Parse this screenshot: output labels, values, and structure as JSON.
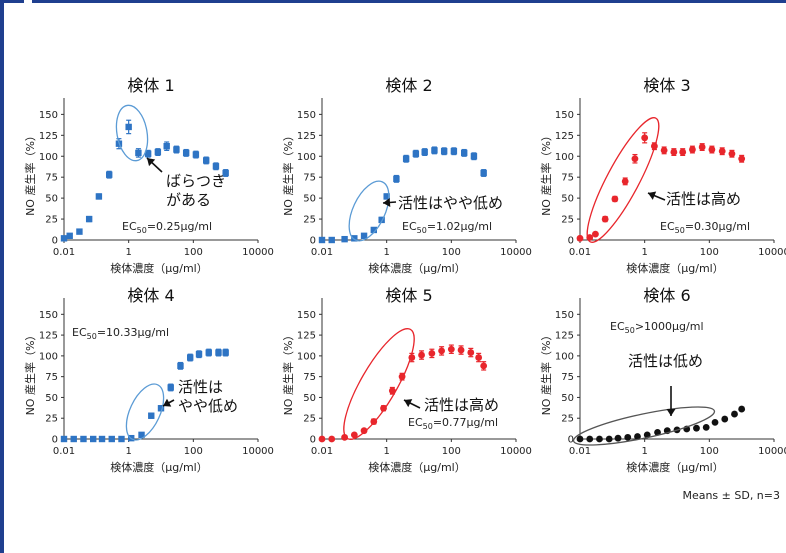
{
  "colors": {
    "blue": "#2e74c4",
    "red": "#e8262c",
    "black": "#111111",
    "ellipse_blue": "#5b9bd5",
    "ellipse_red": "#e8262c",
    "ellipse_black": "#555555",
    "axis": "#333333"
  },
  "axis_text": {
    "y_label": "NO 産生率（%）",
    "x_label": "検体濃度（μg/ml）"
  },
  "footnote": "Means ± SD, n=3",
  "chart_data": [
    {
      "type": "scatter",
      "title": "検体 1",
      "color": "blue",
      "xlabel": "検体濃度（μg/ml）",
      "ylabel": "NO 産生率（%）",
      "x_scale": "log",
      "xlim": [
        0.01,
        10000
      ],
      "x_ticks": [
        "0.01",
        "1",
        "100",
        "10000"
      ],
      "x_tick_values": [
        0.01,
        1,
        100,
        10000
      ],
      "ylim": [
        0,
        160
      ],
      "y_ticks": [
        0,
        25,
        50,
        75,
        100,
        125,
        150
      ],
      "ec50_text": "EC50=0.25μg/ml",
      "ec50_sub": "50",
      "ec50_pre": "EC",
      "ec50_post": "=0.25μg/ml",
      "annotation": {
        "text_lines": [
          "ばらつき",
          "がある"
        ]
      },
      "x": [
        0.01,
        0.015,
        0.03,
        0.06,
        0.12,
        0.25,
        0.5,
        1,
        2,
        4,
        8,
        15,
        30,
        60,
        120,
        250,
        500,
        1000
      ],
      "y": [
        2,
        5,
        10,
        25,
        52,
        78,
        115,
        135,
        104,
        103,
        105,
        112,
        108,
        104,
        102,
        95,
        88,
        80
      ],
      "err": [
        1,
        2,
        2,
        3,
        3,
        4,
        6,
        8,
        5,
        4,
        4,
        5,
        4,
        4,
        4,
        4,
        4,
        4
      ]
    },
    {
      "type": "scatter",
      "title": "検体 2",
      "color": "blue",
      "xlabel": "検体濃度（μg/ml）",
      "ylabel": "NO 産生率（%）",
      "x_scale": "log",
      "xlim": [
        0.01,
        10000
      ],
      "x_ticks": [
        "0.01",
        "1",
        "100",
        "10000"
      ],
      "x_tick_values": [
        0.01,
        1,
        100,
        10000
      ],
      "ylim": [
        0,
        160
      ],
      "y_ticks": [
        0,
        25,
        50,
        75,
        100,
        125,
        150
      ],
      "ec50_pre": "EC",
      "ec50_sub": "50",
      "ec50_post": "=1.02μg/ml",
      "annotation": {
        "text_lines": [
          "活性はやや低め"
        ]
      },
      "x": [
        0.01,
        0.02,
        0.05,
        0.1,
        0.2,
        0.4,
        0.7,
        1,
        2,
        4,
        8,
        15,
        30,
        60,
        120,
        250,
        500,
        1000
      ],
      "y": [
        0,
        0,
        1,
        2,
        5,
        12,
        24,
        52,
        73,
        97,
        103,
        105,
        107,
        106,
        106,
        104,
        100,
        80
      ],
      "err": [
        1,
        1,
        1,
        1,
        2,
        2,
        3,
        3,
        4,
        4,
        4,
        4,
        4,
        4,
        4,
        4,
        4,
        4
      ]
    },
    {
      "type": "scatter",
      "title": "検体 3",
      "color": "red",
      "xlabel": "検体濃度（μg/ml）",
      "ylabel": "NO 産生率（%）",
      "x_scale": "log",
      "xlim": [
        0.01,
        10000
      ],
      "x_ticks": [
        "0.01",
        "1",
        "100",
        "10000"
      ],
      "x_tick_values": [
        0.01,
        1,
        100,
        10000
      ],
      "ylim": [
        0,
        160
      ],
      "y_ticks": [
        0,
        25,
        50,
        75,
        100,
        125,
        150
      ],
      "ec50_pre": "EC",
      "ec50_sub": "50",
      "ec50_post": "=0.30μg/ml",
      "annotation": {
        "text_lines": [
          "活性は高め"
        ]
      },
      "x": [
        0.01,
        0.02,
        0.03,
        0.06,
        0.12,
        0.25,
        0.5,
        1,
        2,
        4,
        8,
        15,
        30,
        60,
        120,
        250,
        500,
        1000
      ],
      "y": [
        2,
        3,
        7,
        25,
        49,
        70,
        97,
        122,
        112,
        107,
        105,
        105,
        108,
        111,
        108,
        106,
        103,
        97
      ],
      "err": [
        1,
        1,
        2,
        3,
        3,
        4,
        5,
        6,
        4,
        4,
        4,
        4,
        4,
        4,
        4,
        4,
        4,
        4
      ]
    },
    {
      "type": "scatter",
      "title": "検体 4",
      "color": "blue",
      "xlabel": "検体濃度（μg/ml）",
      "ylabel": "NO 産生率（%）",
      "x_scale": "log",
      "xlim": [
        0.01,
        10000
      ],
      "x_ticks": [
        "0.01",
        "1",
        "100",
        "10000"
      ],
      "x_tick_values": [
        0.01,
        1,
        100,
        10000
      ],
      "ylim": [
        0,
        160
      ],
      "y_ticks": [
        0,
        25,
        50,
        75,
        100,
        125,
        150
      ],
      "ec50_pre": "EC",
      "ec50_sub": "50",
      "ec50_post": "=10.33μg/ml",
      "annotation": {
        "text_lines": [
          "活性は",
          "やや低め"
        ]
      },
      "x": [
        0.01,
        0.02,
        0.04,
        0.08,
        0.15,
        0.3,
        0.6,
        1.2,
        2.5,
        5,
        10,
        20,
        40,
        80,
        150,
        300,
        600,
        1000
      ],
      "y": [
        0,
        0,
        0,
        0,
        0,
        0,
        0,
        1,
        5,
        28,
        37,
        62,
        88,
        98,
        102,
        104,
        104,
        104
      ],
      "err": [
        1,
        1,
        1,
        1,
        1,
        1,
        1,
        1,
        2,
        3,
        3,
        4,
        4,
        4,
        4,
        4,
        4,
        4
      ]
    },
    {
      "type": "scatter",
      "title": "検体 5",
      "color": "red",
      "xlabel": "検体濃度（μg/ml）",
      "ylabel": "NO 産生率（%）",
      "x_scale": "log",
      "xlim": [
        0.01,
        10000
      ],
      "x_ticks": [
        "0.01",
        "1",
        "100",
        "10000"
      ],
      "x_tick_values": [
        0.01,
        1,
        100,
        10000
      ],
      "ylim": [
        0,
        160
      ],
      "y_ticks": [
        0,
        25,
        50,
        75,
        100,
        125,
        150
      ],
      "ec50_pre": "EC",
      "ec50_sub": "50",
      "ec50_post": "=0.77μg/ml",
      "annotation": {
        "text_lines": [
          "活性は高め"
        ]
      },
      "x": [
        0.01,
        0.02,
        0.05,
        0.1,
        0.2,
        0.4,
        0.8,
        1.5,
        3,
        6,
        12,
        25,
        50,
        100,
        200,
        400,
        700,
        1000
      ],
      "y": [
        0,
        0,
        2,
        5,
        10,
        21,
        37,
        58,
        75,
        98,
        101,
        103,
        106,
        108,
        107,
        104,
        98,
        88
      ],
      "err": [
        1,
        1,
        1,
        2,
        2,
        3,
        3,
        4,
        4,
        5,
        5,
        5,
        5,
        5,
        5,
        5,
        5,
        5
      ]
    },
    {
      "type": "scatter",
      "title": "検体 6",
      "color": "black",
      "xlabel": "検体濃度（μg/ml）",
      "ylabel": "NO 産生率（%）",
      "x_scale": "log",
      "xlim": [
        0.01,
        10000
      ],
      "x_ticks": [
        "0.01",
        "1",
        "100",
        "10000"
      ],
      "x_tick_values": [
        0.01,
        1,
        100,
        10000
      ],
      "ylim": [
        0,
        160
      ],
      "y_ticks": [
        0,
        25,
        50,
        75,
        100,
        125,
        150
      ],
      "ec50_pre": "EC",
      "ec50_sub": "50",
      "ec50_post": ">1000μg/ml",
      "annotation": {
        "text_lines": [
          "活性は低め"
        ]
      },
      "x": [
        0.01,
        0.02,
        0.04,
        0.08,
        0.15,
        0.3,
        0.6,
        1.2,
        2.5,
        5,
        10,
        20,
        40,
        80,
        150,
        300,
        600,
        1000
      ],
      "y": [
        0,
        0,
        0,
        0,
        1,
        2,
        3,
        5,
        8,
        10,
        11,
        12,
        13,
        14,
        20,
        24,
        30,
        36
      ],
      "err": [
        0,
        0,
        0,
        0,
        0,
        0,
        0,
        0,
        1,
        1,
        1,
        1,
        1,
        1,
        1,
        1,
        1,
        1
      ]
    }
  ]
}
